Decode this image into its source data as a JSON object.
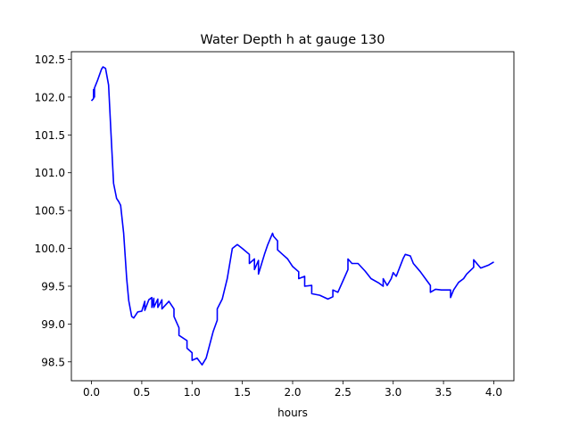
{
  "chart_data": {
    "type": "line",
    "title": "Water Depth h at gauge 130",
    "xlabel": "hours",
    "ylabel": "",
    "xlim": [
      -0.2,
      4.2
    ],
    "ylim": [
      98.25,
      102.6
    ],
    "xticks": [
      0.0,
      0.5,
      1.0,
      1.5,
      2.0,
      2.5,
      3.0,
      3.5,
      4.0
    ],
    "xtick_labels": [
      "0.0",
      "0.5",
      "1.0",
      "1.5",
      "2.0",
      "2.5",
      "3.0",
      "3.5",
      "4.0"
    ],
    "yticks": [
      98.5,
      99.0,
      99.5,
      100.0,
      100.5,
      101.0,
      101.5,
      102.0,
      102.5
    ],
    "ytick_labels": [
      "98.5",
      "99.0",
      "99.5",
      "100.0",
      "100.5",
      "101.0",
      "101.5",
      "102.0",
      "102.5"
    ],
    "grid": false,
    "series": [
      {
        "name": "h",
        "color": "#0000ff",
        "x": [
          0,
          0.02,
          0.02,
          0.03,
          0.03,
          0.06,
          0.1,
          0.115,
          0.14,
          0.17,
          0.195,
          0.22,
          0.25,
          0.27,
          0.29,
          0.32,
          0.35,
          0.37,
          0.4,
          0.42,
          0.46,
          0.5,
          0.53,
          0.53,
          0.57,
          0.6,
          0.6,
          0.62,
          0.62,
          0.66,
          0.66,
          0.7,
          0.7,
          0.77,
          0.82,
          0.82,
          0.87,
          0.87,
          0.95,
          0.95,
          1.0,
          1.0,
          1.05,
          1.1,
          1.14,
          1.21,
          1.25,
          1.25,
          1.3,
          1.35,
          1.4,
          1.45,
          1.5,
          1.57,
          1.57,
          1.62,
          1.62,
          1.66,
          1.66,
          1.72,
          1.75,
          1.8,
          1.81,
          1.85,
          1.85,
          1.9,
          1.95,
          2.0,
          2.06,
          2.06,
          2.12,
          2.12,
          2.19,
          2.19,
          2.27,
          2.35,
          2.4,
          2.4,
          2.45,
          2.5,
          2.55,
          2.55,
          2.59,
          2.65,
          2.72,
          2.78,
          2.86,
          2.9,
          2.9,
          2.94,
          2.98,
          3.0,
          3.03,
          3.1,
          3.12,
          3.17,
          3.2,
          3.27,
          3.32,
          3.37,
          3.37,
          3.42,
          3.48,
          3.57,
          3.57,
          3.6,
          3.65,
          3.7,
          3.73,
          3.8,
          3.8,
          3.87,
          3.95,
          4.0
        ],
        "y": [
          101.95,
          101.98,
          102.1,
          102.0,
          102.12,
          102.22,
          102.37,
          102.4,
          102.38,
          102.16,
          101.5,
          100.86,
          100.66,
          100.62,
          100.57,
          100.2,
          99.6,
          99.31,
          99.1,
          99.08,
          99.16,
          99.17,
          99.3,
          99.18,
          99.32,
          99.35,
          99.22,
          99.34,
          99.22,
          99.33,
          99.22,
          99.32,
          99.2,
          99.3,
          99.2,
          99.1,
          98.95,
          98.85,
          98.78,
          98.68,
          98.62,
          98.52,
          98.55,
          98.46,
          98.55,
          98.9,
          99.05,
          99.2,
          99.33,
          99.6,
          100.0,
          100.05,
          100.0,
          99.92,
          99.8,
          99.86,
          99.72,
          99.84,
          99.66,
          99.92,
          100.04,
          100.2,
          100.16,
          100.1,
          99.98,
          99.92,
          99.86,
          99.76,
          99.69,
          99.6,
          99.63,
          99.5,
          99.51,
          99.4,
          99.38,
          99.33,
          99.36,
          99.45,
          99.42,
          99.57,
          99.72,
          99.86,
          99.8,
          99.8,
          99.7,
          99.6,
          99.54,
          99.5,
          99.6,
          99.51,
          99.6,
          99.68,
          99.63,
          99.87,
          99.92,
          99.9,
          99.8,
          99.69,
          99.6,
          99.51,
          99.42,
          99.46,
          99.45,
          99.45,
          99.35,
          99.45,
          99.55,
          99.6,
          99.66,
          99.75,
          99.85,
          99.74,
          99.78,
          99.82
        ]
      }
    ]
  }
}
